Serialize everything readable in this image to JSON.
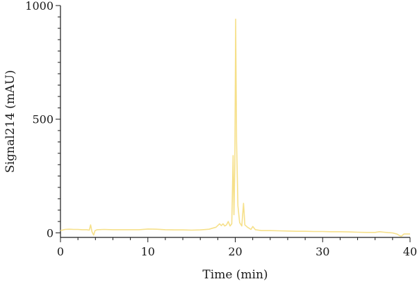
{
  "chart_data": {
    "type": "line",
    "title": "",
    "xlabel": "Time (min)",
    "ylabel": "Signal214 (mAU)",
    "xlim": [
      0,
      40
    ],
    "ylim": [
      -20,
      1000
    ],
    "xticks": [
      0,
      10,
      20,
      30,
      40
    ],
    "yticks": [
      0,
      500,
      1000
    ],
    "grid": false,
    "line_color": "#f6e08a",
    "series": [
      {
        "points": [
          [
            0,
            10
          ],
          [
            0.5,
            15
          ],
          [
            1,
            16
          ],
          [
            1.5,
            15
          ],
          [
            2,
            15
          ],
          [
            2.5,
            14
          ],
          [
            3,
            14
          ],
          [
            3.3,
            12
          ],
          [
            3.45,
            35
          ],
          [
            3.6,
            5
          ],
          [
            3.8,
            -10
          ],
          [
            3.95,
            10
          ],
          [
            4.2,
            14
          ],
          [
            5,
            15
          ],
          [
            6,
            14
          ],
          [
            7,
            14
          ],
          [
            8,
            14
          ],
          [
            9,
            14
          ],
          [
            10,
            17
          ],
          [
            11,
            16
          ],
          [
            12,
            14
          ],
          [
            13,
            13
          ],
          [
            14,
            13
          ],
          [
            15,
            12
          ],
          [
            16,
            13
          ],
          [
            17,
            16
          ],
          [
            17.8,
            25
          ],
          [
            18.2,
            40
          ],
          [
            18.4,
            32
          ],
          [
            18.6,
            40
          ],
          [
            18.8,
            30
          ],
          [
            19.0,
            35
          ],
          [
            19.2,
            50
          ],
          [
            19.4,
            30
          ],
          [
            19.6,
            40
          ],
          [
            19.75,
            340
          ],
          [
            19.85,
            80
          ],
          [
            19.95,
            300
          ],
          [
            20.05,
            940
          ],
          [
            20.15,
            400
          ],
          [
            20.3,
            120
          ],
          [
            20.5,
            45
          ],
          [
            20.75,
            30
          ],
          [
            20.95,
            130
          ],
          [
            21.1,
            35
          ],
          [
            21.4,
            25
          ],
          [
            21.8,
            15
          ],
          [
            22.0,
            28
          ],
          [
            22.3,
            14
          ],
          [
            23,
            10
          ],
          [
            24,
            10
          ],
          [
            25,
            9
          ],
          [
            26,
            8
          ],
          [
            27,
            7
          ],
          [
            28,
            7
          ],
          [
            29,
            6
          ],
          [
            30,
            6
          ],
          [
            31,
            5
          ],
          [
            32,
            5
          ],
          [
            33,
            4
          ],
          [
            34,
            3
          ],
          [
            35,
            2
          ],
          [
            36,
            2
          ],
          [
            36.5,
            5
          ],
          [
            37,
            3
          ],
          [
            37.5,
            1
          ],
          [
            38,
            0
          ],
          [
            38.5,
            -5
          ],
          [
            38.8,
            -12
          ],
          [
            39.0,
            -15
          ],
          [
            39.3,
            -5
          ],
          [
            40,
            -5
          ]
        ]
      }
    ]
  }
}
